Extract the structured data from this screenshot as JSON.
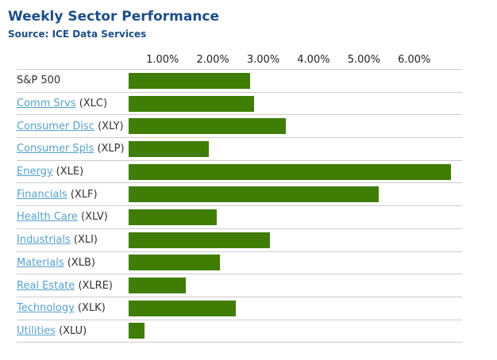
{
  "header": {
    "title": "Weekly Sector Performance",
    "source": "Source: ICE Data Services"
  },
  "colors": {
    "title_blue": "#1D4E89",
    "link_blue": "#55A2CC",
    "bar_green": "#3F7D04",
    "separator_gray": "#CCCCCC",
    "label_dark": "#333333"
  },
  "chart_data": {
    "type": "bar",
    "orientation": "horizontal",
    "title": "Weekly Sector Performance",
    "source": "Source: ICE Data Services",
    "unit": "%",
    "xlim": [
      0,
      6.6
    ],
    "x_ticks": [
      "1.00%",
      "2.00%",
      "3.00%",
      "4.00%",
      "5.00%",
      "6.00%"
    ],
    "grid": false,
    "legend": false,
    "bar_color": "#3F7D04",
    "categories": [
      "S&P 500",
      "Comm Srvs (XLC)",
      "Consumer Disc (XLY)",
      "Consumer Spls (XLP)",
      "Energy (XLE)",
      "Financials (XLF)",
      "Health Care (XLV)",
      "Industrials (XLI)",
      "Materials (XLB)",
      "Real Estate (XLRE)",
      "Technology (XLK)",
      "Utilities (XLU)"
    ],
    "values": [
      2.42,
      2.49,
      3.13,
      1.6,
      6.41,
      4.96,
      1.75,
      2.8,
      1.82,
      1.13,
      2.13,
      0.32
    ],
    "rows": [
      {
        "label": "S&P 500",
        "ticker": "",
        "is_link": false,
        "value": 2.42
      },
      {
        "label": "Comm Srvs",
        "ticker": "(XLC)",
        "is_link": true,
        "value": 2.49
      },
      {
        "label": "Consumer Disc",
        "ticker": "(XLY)",
        "is_link": true,
        "value": 3.13
      },
      {
        "label": "Consumer Spls",
        "ticker": "(XLP)",
        "is_link": true,
        "value": 1.6
      },
      {
        "label": "Energy",
        "ticker": "(XLE)",
        "is_link": true,
        "value": 6.41
      },
      {
        "label": "Financials",
        "ticker": "(XLF)",
        "is_link": true,
        "value": 4.96
      },
      {
        "label": "Health Care",
        "ticker": "(XLV)",
        "is_link": true,
        "value": 1.75
      },
      {
        "label": "Industrials",
        "ticker": "(XLI)",
        "is_link": true,
        "value": 2.8
      },
      {
        "label": "Materials",
        "ticker": "(XLB)",
        "is_link": true,
        "value": 1.82
      },
      {
        "label": "Real Estate",
        "ticker": "(XLRE)",
        "is_link": true,
        "value": 1.13
      },
      {
        "label": "Technology",
        "ticker": "(XLK)",
        "is_link": true,
        "value": 2.13
      },
      {
        "label": "Utilities",
        "ticker": "(XLU)",
        "is_link": true,
        "value": 0.32
      }
    ]
  }
}
